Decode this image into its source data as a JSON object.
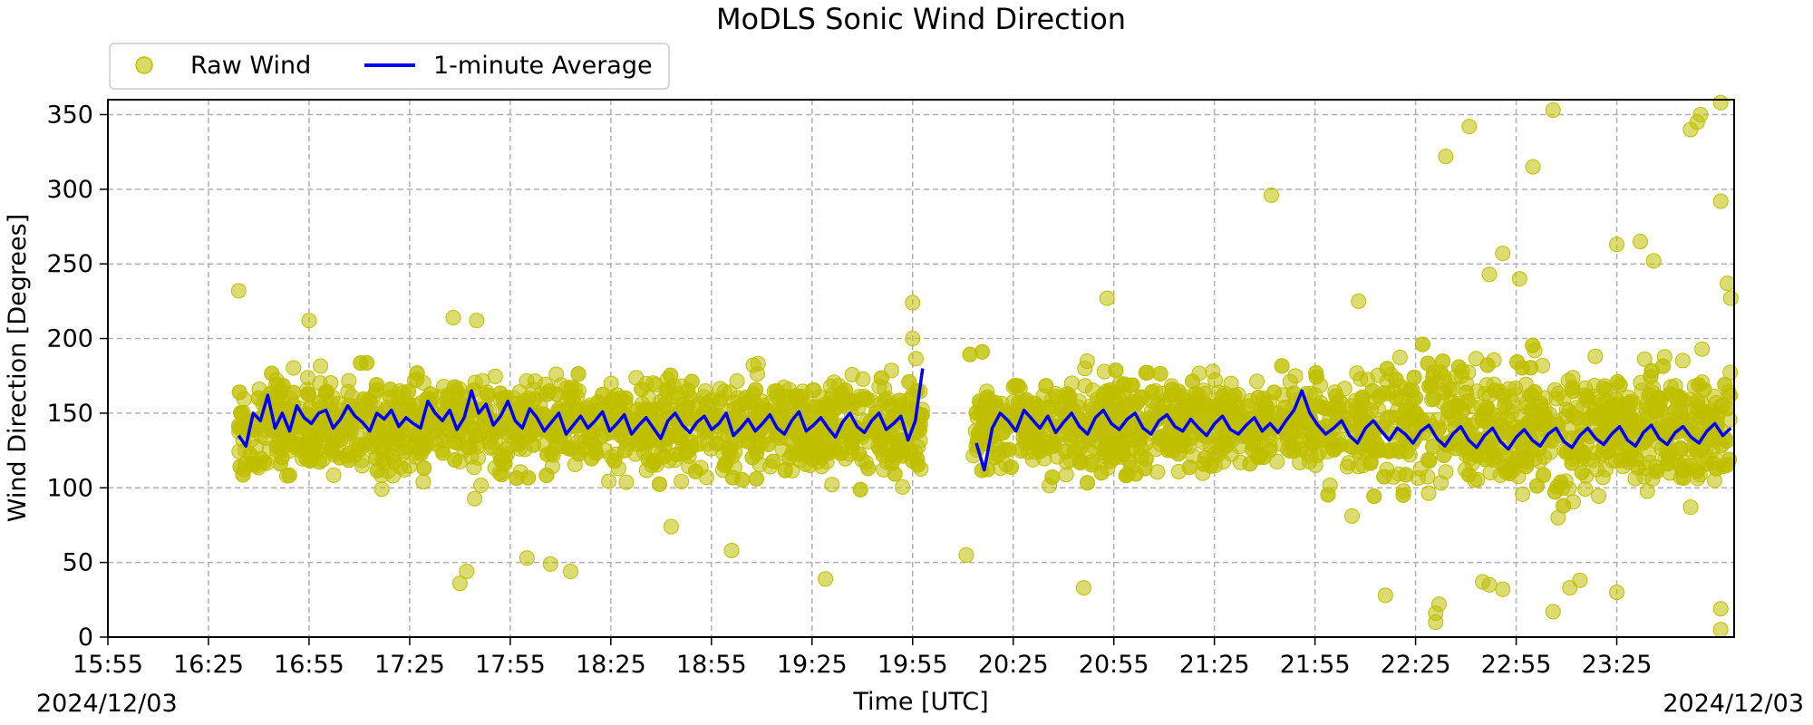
{
  "chart_data": {
    "type": "scatter",
    "title": "MoDLS Sonic Wind Direction",
    "xlabel": "Time [UTC]",
    "ylabel": "Wind Direction [Degrees]",
    "date_left": "2024/12/03",
    "date_right": "2024/12/03",
    "xlim": [
      "15:55",
      "00:00"
    ],
    "ylim": [
      0,
      360
    ],
    "grid": true,
    "legend_position": "top-left (above plot)",
    "x_ticks": [
      "15:55",
      "16:25",
      "16:55",
      "17:25",
      "17:55",
      "18:25",
      "18:55",
      "19:25",
      "19:55",
      "20:25",
      "20:55",
      "21:25",
      "21:55",
      "22:25",
      "22:55",
      "23:25"
    ],
    "y_ticks": [
      "0",
      "50",
      "100",
      "150",
      "200",
      "250",
      "300",
      "350"
    ],
    "data_gaps": [
      [
        "19:58",
        "20:12"
      ]
    ],
    "series": [
      {
        "name": "Raw Wind",
        "kind": "scatter",
        "color": "#bfbf00",
        "points": [
          [
            "16:34",
            232
          ],
          [
            "16:55",
            212
          ],
          [
            "17:38",
            214
          ],
          [
            "17:45",
            212
          ],
          [
            "17:40",
            36
          ],
          [
            "17:42",
            44
          ],
          [
            "18:00",
            53
          ],
          [
            "18:07",
            49
          ],
          [
            "18:13",
            44
          ],
          [
            "18:43",
            74
          ],
          [
            "19:01",
            58
          ],
          [
            "19:29",
            39
          ],
          [
            "19:55",
            224
          ],
          [
            "19:55",
            200
          ],
          [
            "20:11",
            55
          ],
          [
            "20:46",
            33
          ],
          [
            "20:53",
            227
          ],
          [
            "21:42",
            296
          ],
          [
            "22:08",
            225
          ],
          [
            "22:34",
            322
          ],
          [
            "22:41",
            342
          ],
          [
            "22:51",
            257
          ],
          [
            "22:47",
            243
          ],
          [
            "22:56",
            240
          ],
          [
            "23:00",
            315
          ],
          [
            "23:06",
            353
          ],
          [
            "23:25",
            263
          ],
          [
            "23:32",
            265
          ],
          [
            "23:36",
            252
          ],
          [
            "23:47",
            340
          ],
          [
            "23:49",
            345
          ],
          [
            "23:50",
            350
          ],
          [
            "23:56",
            358
          ],
          [
            "23:56",
            292
          ],
          [
            "23:58",
            237
          ],
          [
            "23:59",
            227
          ],
          [
            "22:16",
            28
          ],
          [
            "22:31",
            10
          ],
          [
            "22:31",
            16
          ],
          [
            "22:32",
            22
          ],
          [
            "22:45",
            37
          ],
          [
            "22:47",
            35
          ],
          [
            "22:51",
            32
          ],
          [
            "23:06",
            17
          ],
          [
            "23:11",
            33
          ],
          [
            "23:14",
            38
          ],
          [
            "23:25",
            30
          ],
          [
            "23:56",
            5
          ],
          [
            "23:56",
            19
          ]
        ]
      },
      {
        "name": "1-minute Average",
        "kind": "line",
        "color": "#0000ff",
        "segments": [
          {
            "start": "16:34",
            "end": "19:58",
            "values": [
              135,
              128,
              150,
              145,
              162,
              140,
              150,
              138,
              155,
              147,
              143,
              150,
              152,
              140,
              146,
              155,
              148,
              144,
              138,
              150,
              146,
              152,
              141,
              147,
              143,
              140,
              158,
              150,
              145,
              152,
              139,
              147,
              165,
              150,
              156,
              142,
              148,
              158,
              145,
              140,
              153,
              147,
              138,
              144,
              150,
              136,
              142,
              148,
              140,
              145,
              151,
              138,
              143,
              149,
              136,
              142,
              147,
              140,
              133,
              145,
              150,
              142,
              137,
              144,
              148,
              139,
              143,
              150,
              135,
              140,
              146,
              138,
              143,
              149,
              140,
              136,
              145,
              151,
              138,
              142,
              147,
              140,
              134,
              144,
              150,
              141,
              137,
              145,
              150,
              139,
              143,
              148,
              132,
              145,
              180
            ]
          },
          {
            "start": "20:14",
            "end": "23:59",
            "values": [
              130,
              112,
              140,
              150,
              145,
              138,
              152,
              146,
              140,
              148,
              137,
              144,
              150,
              141,
              136,
              147,
              152,
              143,
              139,
              146,
              150,
              140,
              136,
              145,
              149,
              141,
              138,
              146,
              140,
              135,
              143,
              148,
              139,
              136,
              142,
              147,
              138,
              143,
              137,
              145,
              152,
              165,
              150,
              142,
              136,
              140,
              145,
              135,
              130,
              140,
              145,
              138,
              132,
              140,
              136,
              130,
              138,
              142,
              133,
              128,
              136,
              141,
              132,
              127,
              135,
              140,
              131,
              126,
              134,
              139,
              132,
              128,
              136,
              140,
              131,
              127,
              135,
              140,
              133,
              129,
              136,
              141,
              132,
              128,
              137,
              142,
              133,
              129,
              137,
              141,
              134,
              130,
              138,
              143,
              135,
              140
            ]
          }
        ]
      }
    ]
  }
}
